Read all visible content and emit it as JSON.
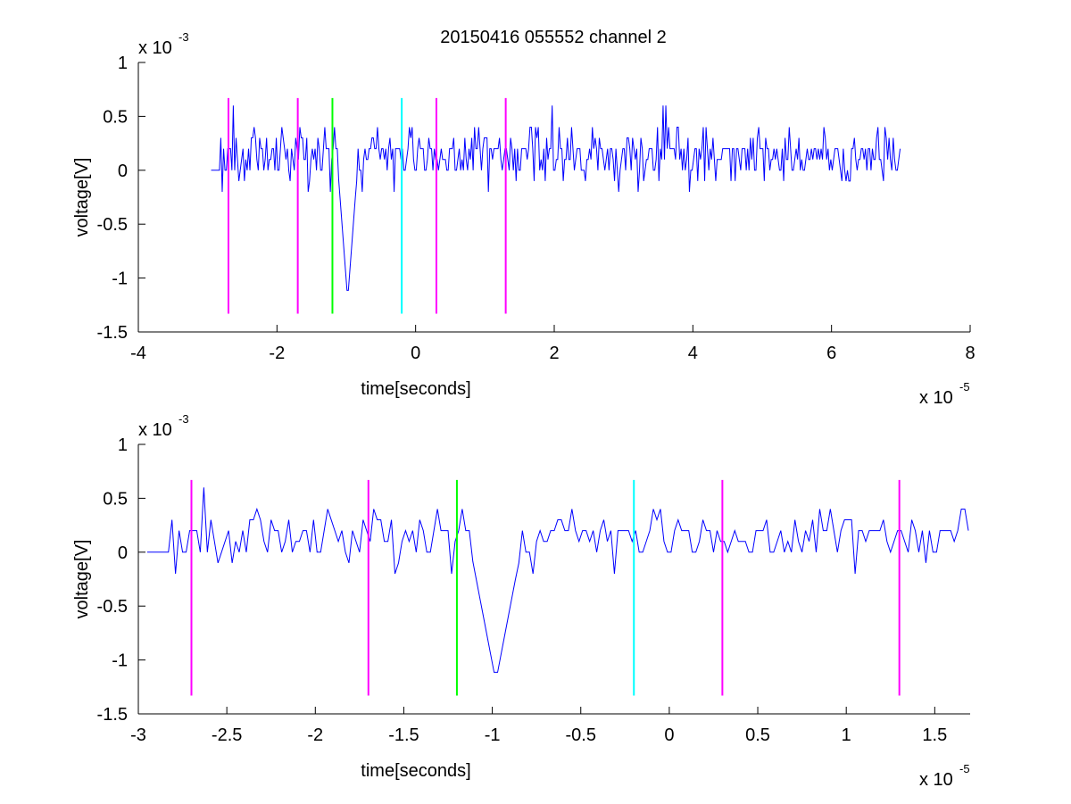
{
  "figure_title": "20150416 055552 channel 2",
  "colors": {
    "signal": "#0000ff",
    "magenta": "#ff00ff",
    "green": "#00ff00",
    "cyan": "#00ffff",
    "axes": "#000000"
  },
  "chart_data": [
    {
      "type": "line",
      "title": "20150416 055552 channel 2",
      "xlabel": "time[seconds]",
      "ylabel": "voltage[V]",
      "x_multiplier": "x 10",
      "x_exponent": "-5",
      "y_multiplier": "x 10",
      "y_exponent": "-3",
      "xlim": [
        -4,
        8
      ],
      "ylim": [
        -1.5,
        1
      ],
      "x_ticks": [
        -4,
        -2,
        0,
        2,
        4,
        6,
        8
      ],
      "x_tick_labels": [
        "-4",
        "-2",
        "0",
        "2",
        "4",
        "6",
        "8"
      ],
      "y_ticks": [
        1,
        0.5,
        0,
        -0.5,
        -1,
        -1.5
      ],
      "y_tick_labels": [
        "1",
        "0.5",
        "0",
        "-0.5",
        "-1",
        "-1.5"
      ],
      "grid": false,
      "signal_range": [
        -2.95,
        7.0
      ],
      "signal_dip": {
        "x": -0.98,
        "y": -1.2
      },
      "markers": [
        {
          "x": -2.7,
          "color": "magenta",
          "y_range": [
            -1.33,
            0.67
          ]
        },
        {
          "x": -1.7,
          "color": "magenta",
          "y_range": [
            -1.33,
            0.67
          ]
        },
        {
          "x": -1.2,
          "color": "green",
          "y_range": [
            -1.33,
            0.67
          ]
        },
        {
          "x": -0.2,
          "color": "cyan",
          "y_range": [
            -1.33,
            0.67
          ]
        },
        {
          "x": 0.3,
          "color": "magenta",
          "y_range": [
            -1.33,
            0.67
          ]
        },
        {
          "x": 1.3,
          "color": "magenta",
          "y_range": [
            -1.33,
            0.67
          ]
        }
      ]
    },
    {
      "type": "line",
      "title": "",
      "xlabel": "time[seconds]",
      "ylabel": "voltage[V]",
      "x_multiplier": "x 10",
      "x_exponent": "-5",
      "y_multiplier": "x 10",
      "y_exponent": "-3",
      "xlim": [
        -3.0,
        1.7
      ],
      "ylim": [
        -1.5,
        1
      ],
      "x_ticks": [
        -3,
        -2.5,
        -2,
        -1.5,
        -1,
        -0.5,
        0,
        0.5,
        1,
        1.5
      ],
      "x_tick_labels": [
        "-3",
        "-2.5",
        "-2",
        "-1.5",
        "-1",
        "-0.5",
        "0",
        "0.5",
        "1",
        "1.5"
      ],
      "y_ticks": [
        1,
        0.5,
        0,
        -0.5,
        -1,
        -1.5
      ],
      "y_tick_labels": [
        "1",
        "0.5",
        "0",
        "-0.5",
        "-1",
        "-1.5"
      ],
      "grid": false,
      "signal_range": [
        -2.95,
        1.7
      ],
      "signal_dip": {
        "x": -0.98,
        "y": -1.2
      },
      "markers": [
        {
          "x": -2.7,
          "color": "magenta",
          "y_range": [
            -1.33,
            0.67
          ]
        },
        {
          "x": -1.7,
          "color": "magenta",
          "y_range": [
            -1.33,
            0.67
          ]
        },
        {
          "x": -1.2,
          "color": "green",
          "y_range": [
            -1.33,
            0.67
          ]
        },
        {
          "x": -0.2,
          "color": "cyan",
          "y_range": [
            -1.33,
            0.67
          ]
        },
        {
          "x": 0.3,
          "color": "magenta",
          "y_range": [
            -1.33,
            0.67
          ]
        },
        {
          "x": 1.3,
          "color": "magenta",
          "y_range": [
            -1.33,
            0.67
          ]
        }
      ]
    }
  ]
}
